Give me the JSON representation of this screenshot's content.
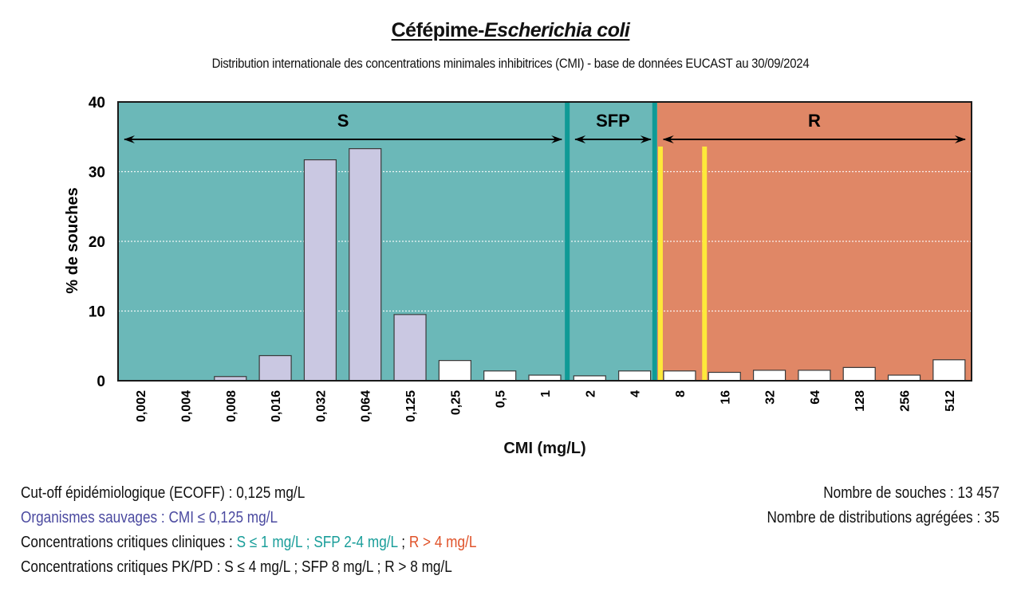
{
  "header": {
    "title_part1": "Céfépime-",
    "title_part2": "Escherichia coli",
    "subtitle": "Distribution internationale des concentrations minimales inhibitrices (CMI) - base de données EUCAST au 30/09/2024"
  },
  "colors": {
    "zone_s": "#6bb8b8",
    "zone_r": "#e08766",
    "breakpoint_line": "#0f9a96",
    "pkpd_line": "#fde93a",
    "bar_wild": "#cac8e2",
    "bar_nonwild": "#ffffff"
  },
  "chart_data": {
    "type": "bar",
    "title": "Céfépime-Escherichia coli",
    "subtitle": "Distribution internationale des concentrations minimales inhibitrices (CMI) - base de données EUCAST au 30/09/2024",
    "xlabel": "CMI (mg/L)",
    "ylabel": "% de souches",
    "ylim": [
      0,
      40
    ],
    "yticks": [
      "0",
      "10",
      "20",
      "30",
      "40"
    ],
    "grid": "horizontal dotted",
    "categories": [
      "0,002",
      "0,004",
      "0,008",
      "0,016",
      "0,032",
      "0,064",
      "0,125",
      "0,25",
      "0,5",
      "1",
      "2",
      "4",
      "8",
      "16",
      "32",
      "64",
      "128",
      "256",
      "512"
    ],
    "values": [
      0,
      0,
      0.6,
      3.6,
      31.7,
      33.3,
      9.5,
      2.9,
      1.4,
      0.8,
      0.7,
      1.4,
      1.4,
      1.2,
      1.5,
      1.5,
      1.9,
      0.8,
      3.0
    ],
    "wild_type_up_to_index": 6,
    "zones": [
      {
        "label": "S",
        "from_index": 0,
        "to_index": 9
      },
      {
        "label": "SFP",
        "from_index": 10,
        "to_index": 11
      },
      {
        "label": "R",
        "from_index": 12,
        "to_index": 18
      }
    ],
    "pkpd_lines_at": [
      "8",
      "16"
    ]
  },
  "notes": {
    "ecoff": "Cut-off épidémiologique (ECOFF) : 0,125 mg/L",
    "wild": "Organismes sauvages : CMI ≤ 0,125 mg/L",
    "clinical_prefix": "Concentrations critiques cliniques : ",
    "clinical_s": "S ≤ 1 mg/L ; SFP 2-4 mg/L",
    "clinical_sep": " ; ",
    "clinical_r": "R > 4 mg/L",
    "pkpd": "Concentrations critiques PK/PD : S ≤ 4 mg/L ; SFP 8 mg/L ; R > 8 mg/L"
  },
  "stats": {
    "strains": "Nombre de souches : 13 457",
    "distributions": "Nombre de distributions agrégées : 35"
  }
}
